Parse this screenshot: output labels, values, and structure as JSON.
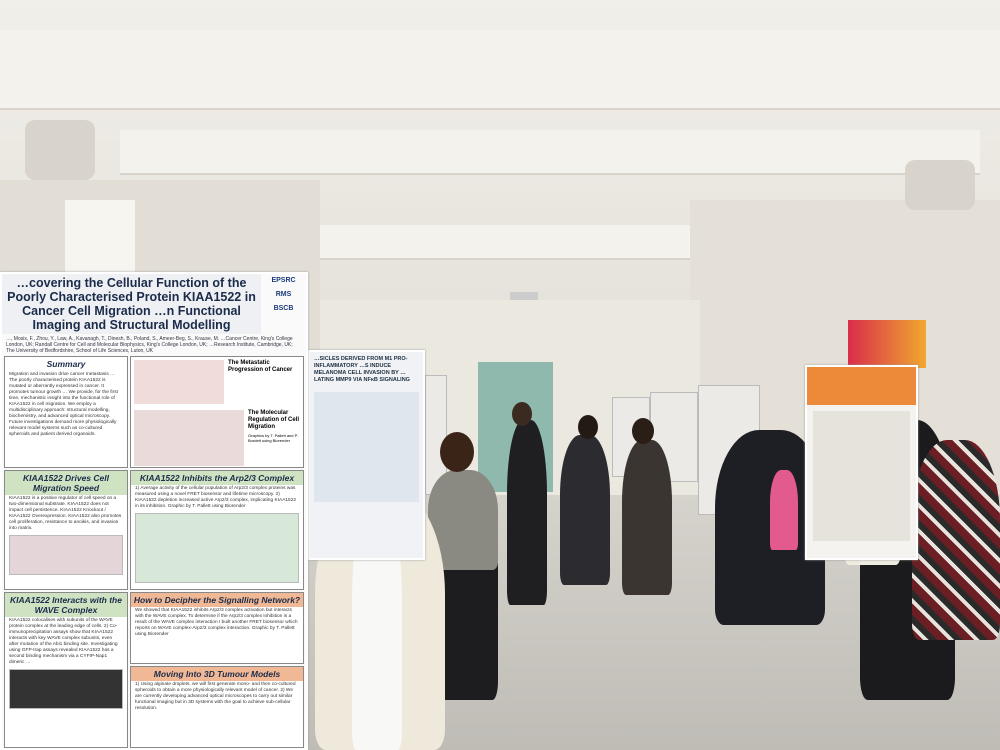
{
  "main_poster": {
    "title": "…covering the Cellular Function of the Poorly Characterised Protein KIAA1522 in Cancer Cell Migration …n Functional Imaging and Structural Modelling",
    "authors": "…, Mosis, F., Zhou, Y., Law, A., Kavanagh, T., Dinesh, B., Poland, S., Ameer-Beg, S., Krause, M. …Cancer Centre, King's College London, UK; Randall Centre for Cell and Molecular Biophysics, King's College London, UK; …Research Institute, Cambridge, UK; The University of Bedfordshire, School of Life Sciences, Luton, UK",
    "logos": [
      "EPSRC",
      "RMS",
      "BSCB"
    ],
    "sections": [
      {
        "title": "Summary",
        "text": "Migration and invasion drive cancer metastasis … The poorly characterised protein KIAA1522 is mutated or aberrantly expressed in cancer. It promotes tumour growth … We provide, for the first time, mechanistic insight into the functional role of KIAA1522 in cell migration. We employ a multidisciplinary approach: structural modelling, biochemistry, and advanced optical microscopy. Future investigations demand more physiologically relevant model systems such as co-cultured spheroids and patient derived organoids."
      },
      {
        "title": "The Metastatic Progression of Cancer",
        "text": ""
      },
      {
        "title": "The Molecular Regulation of Cell Migration",
        "text": "Graphics by T. Pallett and P. Burdett using Biorender"
      },
      {
        "title": "KIAA1522 Drives Cell Migration Speed",
        "text": "KIAA1522 is a positive regulator of cell speed on a two-dimensional substrate. KIAA1522 does not impact cell persistence. KIAA1522 Knockout / KIAA1522 Overexpression. KIAA1522 also promotes cell proliferation, resistance to anoikis, and invasion into matrix."
      },
      {
        "title": "KIAA1522 Inhibits the Arp2/3 Complex",
        "text": "1) Average activity of the cellular population of Arp2/3 complex proteins was measured using a novel FRET biosensor and lifetime microscopy. 2) KIAA1522 depletion increased active Arp2/3 complex, implicating KIAA1522 in its inhibition. Graphic by T. Pallett using Biorender"
      },
      {
        "title": "KIAA1522 Interacts with the WAVE Complex",
        "text": "KIAA1522 colocalises with subunits of the WAVE protein complex at the leading edge of cells. 2) Co-immunoprecipitation assays show that KIAA1522 interacts with key WAVE complex subunits, even after mutation of the Abi1 binding site. Investigating using GFP-trap assays revealed KIAA1522 has a second binding mechanism via a CYFIP-Nap1 dimeric …"
      },
      {
        "title": "How to Decipher the Signalling Network?",
        "text": "We showed that KIAA1522 inhibits Arp2/3 complex activation but interacts with the WAVE complex. To determine if the Arp2/3 complex inhibition is a result of the WAVE complex interaction I built another FRET biosensor which reports on WAVE complex-Arp2/3 complex interaction. Graphic by T. Pallett using Biorender"
      },
      {
        "title": "Moving Into 3D Tumour Models",
        "text": "1) Using alginate droplets, we will first generate mono- and then co-cultured spheroids to obtain a more physiologically relevant model of cancer. 2) We are currently developing advanced optical microscopes to carry out similar functional imaging but in 3D systems with the goal to achieve sub-cellular resolution."
      }
    ]
  },
  "poster2": {
    "title": "…SICLES DERIVED FROM M1 PRO-INFLAMMATORY …S INDUCE MELANOMA CELL INVASION BY …LATING MMP9 VIA NFκB SIGNALING"
  },
  "colors": {
    "ceiling": "#f1efe9",
    "floor": "#c9c6c0",
    "door": "#8fb9ad",
    "accent_orange": "#ec8a3a",
    "section_green": "#cfe3c2",
    "section_orange": "#f0b894"
  }
}
